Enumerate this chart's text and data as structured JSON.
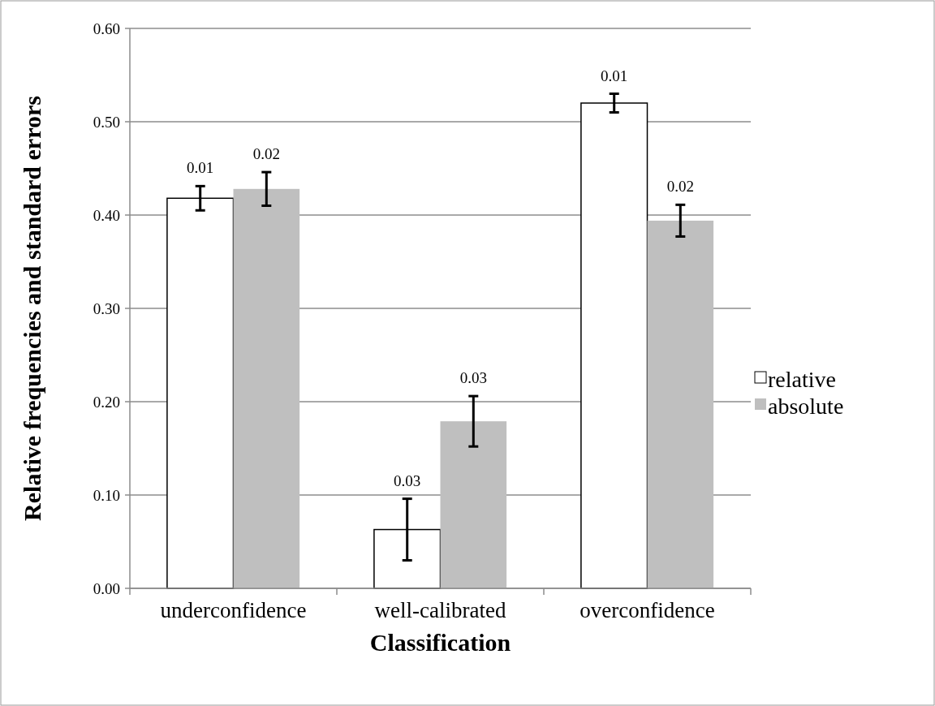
{
  "chart_data": {
    "type": "bar",
    "xlabel": "Classification",
    "ylabel": "Relative frequencies and standard errors",
    "categories": [
      "underconfidence",
      "well-calibrated",
      "overconfidence"
    ],
    "series": [
      {
        "name": "relative",
        "color": "#ffffff",
        "values": [
          0.418,
          0.063,
          0.52
        ],
        "errors": [
          0.013,
          0.033,
          0.01
        ]
      },
      {
        "name": "absolute",
        "color": "#bfbfbf",
        "values": [
          0.428,
          0.179,
          0.394
        ],
        "errors": [
          0.018,
          0.027,
          0.017
        ]
      }
    ],
    "ylim": [
      0,
      0.6
    ],
    "yticks": [
      {
        "value": 0,
        "label": "0.00"
      },
      {
        "value": 0.1,
        "label": "0.10"
      },
      {
        "value": 0.2,
        "label": "0.20"
      },
      {
        "value": 0.3,
        "label": "0.30"
      },
      {
        "value": 0.4,
        "label": "0.40"
      },
      {
        "value": 0.5,
        "label": "0.50"
      },
      {
        "value": 0.6,
        "label": "0.60"
      }
    ],
    "grid": "y",
    "legend": "right",
    "annotations": [
      "0.01",
      "0.02",
      "0.03",
      "0.03",
      "0.01",
      "0.02"
    ]
  }
}
